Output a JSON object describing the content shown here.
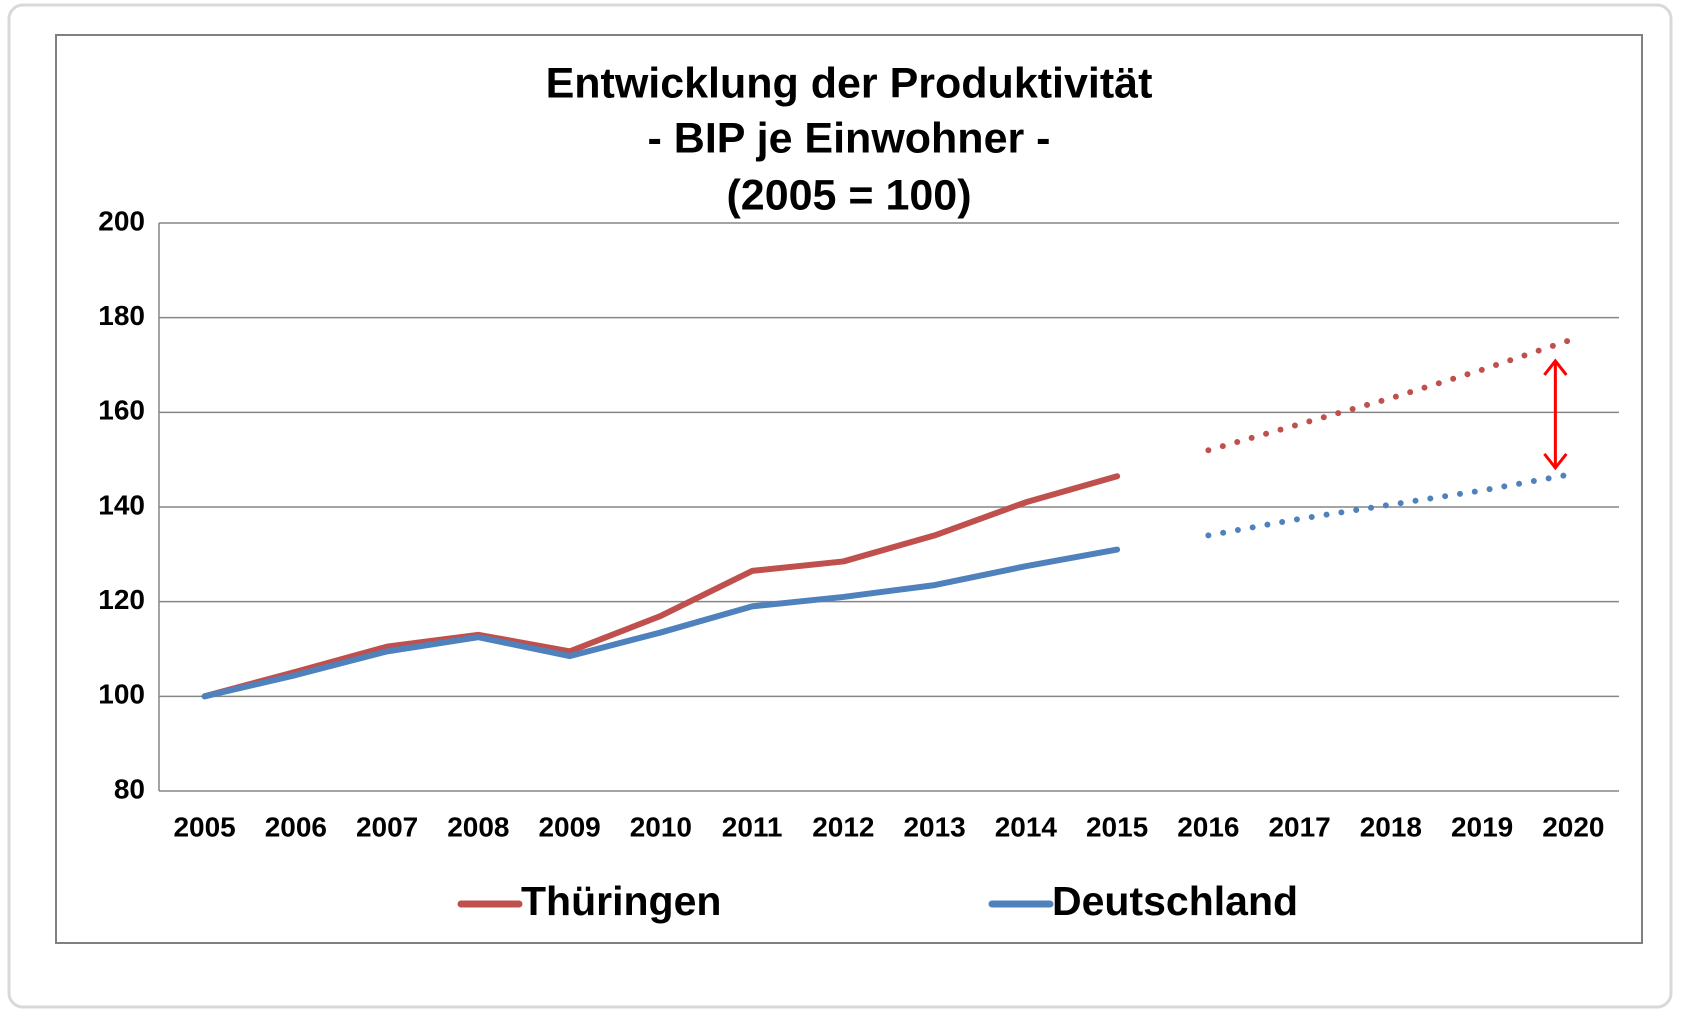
{
  "chart_data": {
    "type": "line",
    "title": [
      "Entwicklung der Produktivität",
      "- BIP je Einwohner -",
      "(2005 = 100)"
    ],
    "categories": [
      "2005",
      "2006",
      "2007",
      "2008",
      "2009",
      "2010",
      "2011",
      "2012",
      "2013",
      "2014",
      "2015",
      "2016",
      "2017",
      "2018",
      "2019",
      "2020"
    ],
    "forecast_start": "2015",
    "series": [
      {
        "name": "Thüringen",
        "color": "#c0504d",
        "values": [
          100,
          105.2,
          110.5,
          113,
          109.5,
          117,
          126.5,
          128.5,
          134,
          141,
          146.5,
          152,
          157.5,
          163,
          169,
          175.5
        ]
      },
      {
        "name": "Deutschland",
        "color": "#4f81bd",
        "values": [
          100,
          104.5,
          109.5,
          112.5,
          108.5,
          113.5,
          119,
          121,
          123.5,
          127.5,
          131,
          134,
          137.5,
          140.5,
          143.5,
          147
        ]
      }
    ],
    "ylim": [
      80,
      200
    ],
    "yticks": [
      80,
      100,
      120,
      140,
      160,
      180,
      200
    ],
    "grid": true
  }
}
